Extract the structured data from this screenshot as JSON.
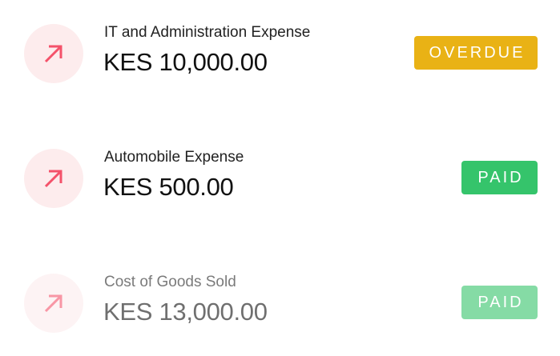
{
  "transactions": [
    {
      "title": "IT and Administration Expense",
      "amount": "KES 10,000.00",
      "status": "OVERDUE",
      "status_color": "#e9b215",
      "icon": "arrow-up-right-icon"
    },
    {
      "title": "Automobile Expense",
      "amount": "KES 500.00",
      "status": "PAID",
      "status_color": "#35c46b",
      "icon": "arrow-up-right-icon"
    },
    {
      "title": "Cost of Goods Sold",
      "amount": "KES 13,000.00",
      "status": "PAID",
      "status_color": "#35c46b",
      "icon": "arrow-up-right-icon"
    }
  ],
  "colors": {
    "icon_bg": "#fdeced",
    "icon_arrow": "#f4526a"
  }
}
